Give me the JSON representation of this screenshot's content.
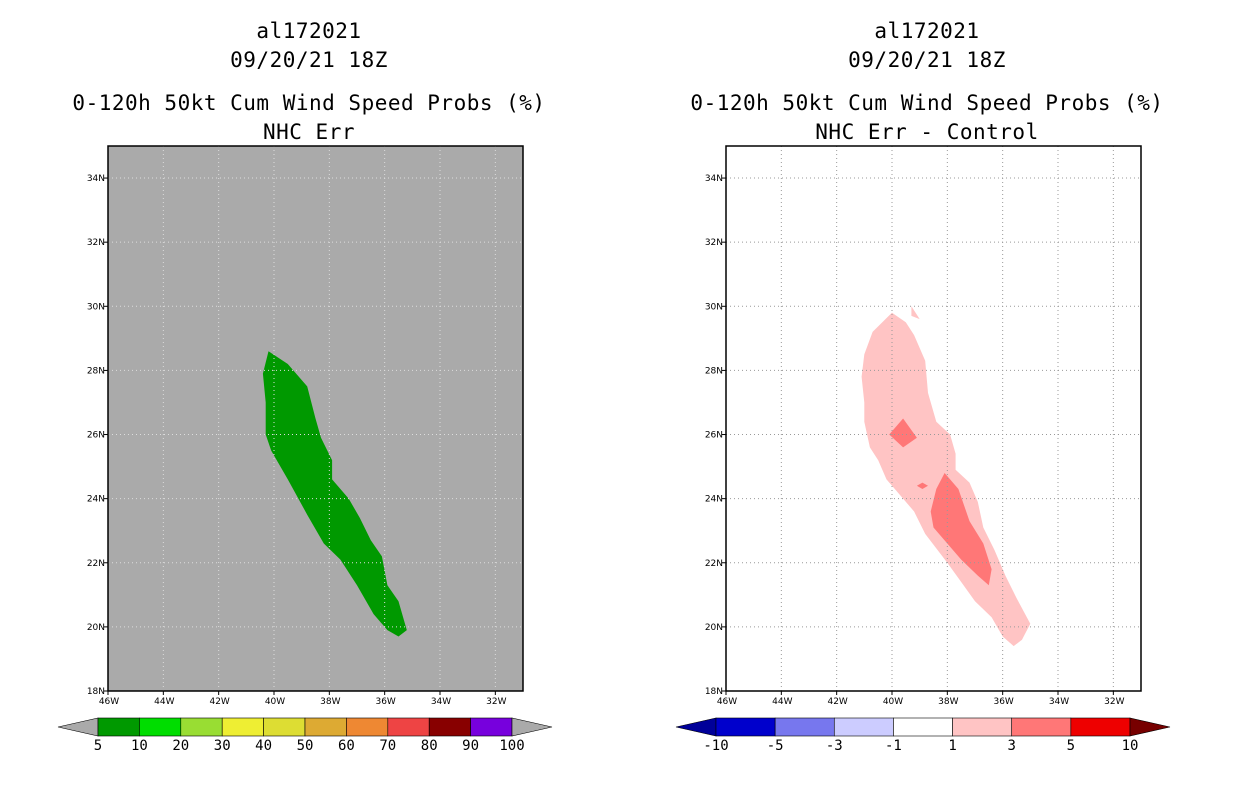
{
  "panels": [
    {
      "storm_id": "al172021",
      "datetime": "09/20/21 18Z",
      "product": "0-120h 50kt Cum Wind Speed Probs (%)",
      "subtitle": "NHC Err"
    },
    {
      "storm_id": "al172021",
      "datetime": "09/20/21 18Z",
      "product": "0-120h 50kt Cum Wind Speed Probs (%)",
      "subtitle": "NHC Err - Control"
    }
  ],
  "chart_data": [
    {
      "type": "heatmap",
      "title": "0-120h 50kt Cum Wind Speed Probs (%)",
      "subtitle": "NHC Err",
      "background_color": "#aaaaaa",
      "xlim": [
        -46,
        -31
      ],
      "ylim": [
        18,
        35
      ],
      "x_ticks": [
        -46,
        -44,
        -42,
        -40,
        -38,
        -36,
        -34,
        -32
      ],
      "x_tick_labels": [
        "46W",
        "44W",
        "42W",
        "40W",
        "38W",
        "36W",
        "34W",
        "32W"
      ],
      "y_ticks": [
        18,
        20,
        22,
        24,
        26,
        28,
        30,
        32,
        34
      ],
      "y_tick_labels": [
        "18N",
        "20N",
        "22N",
        "24N",
        "26N",
        "28N",
        "30N",
        "32N",
        "34N"
      ],
      "colorbar": {
        "labels": [
          "5",
          "10",
          "20",
          "30",
          "40",
          "50",
          "60",
          "70",
          "80",
          "90",
          "100"
        ],
        "colors": [
          "#009900",
          "#00dd00",
          "#99dd33",
          "#eeee33",
          "#dddd33",
          "#ddaa33",
          "#ee8833",
          "#ee4444",
          "#880000",
          "#7700dd"
        ],
        "below_color": "#aaaaaa",
        "above_color": "#aaaaaa"
      },
      "contours": [
        {
          "level": "5-10",
          "color": "#009900",
          "points": [
            [
              -40.2,
              28.6
            ],
            [
              -39.5,
              28.2
            ],
            [
              -38.8,
              27.5
            ],
            [
              -38.5,
              26.5
            ],
            [
              -38.3,
              25.9
            ],
            [
              -37.9,
              25.2
            ],
            [
              -37.9,
              24.6
            ],
            [
              -37.3,
              24.0
            ],
            [
              -36.9,
              23.4
            ],
            [
              -36.5,
              22.7
            ],
            [
              -36.1,
              22.2
            ],
            [
              -35.9,
              21.3
            ],
            [
              -35.5,
              20.8
            ],
            [
              -35.2,
              19.9
            ],
            [
              -35.5,
              19.7
            ],
            [
              -35.9,
              19.9
            ],
            [
              -36.4,
              20.4
            ],
            [
              -37.0,
              21.3
            ],
            [
              -37.6,
              22.1
            ],
            [
              -38.2,
              22.6
            ],
            [
              -38.8,
              23.5
            ],
            [
              -39.5,
              24.6
            ],
            [
              -40.1,
              25.5
            ],
            [
              -40.3,
              26.0
            ],
            [
              -40.3,
              27.0
            ],
            [
              -40.4,
              27.9
            ]
          ]
        }
      ]
    },
    {
      "type": "heatmap",
      "title": "0-120h 50kt Cum Wind Speed Probs (%)",
      "subtitle": "NHC Err - Control",
      "background_color": "#ffffff",
      "xlim": [
        -46,
        -31
      ],
      "ylim": [
        18,
        35
      ],
      "x_ticks": [
        -46,
        -44,
        -42,
        -40,
        -38,
        -36,
        -34,
        -32
      ],
      "x_tick_labels": [
        "46W",
        "44W",
        "42W",
        "40W",
        "38W",
        "36W",
        "34W",
        "32W"
      ],
      "y_ticks": [
        18,
        20,
        22,
        24,
        26,
        28,
        30,
        32,
        34
      ],
      "y_tick_labels": [
        "18N",
        "20N",
        "22N",
        "24N",
        "26N",
        "28N",
        "30N",
        "32N",
        "34N"
      ],
      "colorbar": {
        "labels": [
          "-10",
          "-5",
          "-3",
          "-1",
          "1",
          "3",
          "5",
          "10"
        ],
        "colors": [
          "#0000cc",
          "#7777ee",
          "#ccccff",
          "#ffffff",
          "#ffc4c4",
          "#ff7777",
          "#ee0000"
        ],
        "below_color": "#000099",
        "above_color": "#770000"
      },
      "contours": [
        {
          "level": "1-3",
          "color": "#ffc4c4",
          "points": [
            [
              -40.0,
              29.8
            ],
            [
              -39.5,
              29.5
            ],
            [
              -39.2,
              29.1
            ],
            [
              -38.8,
              28.3
            ],
            [
              -38.7,
              27.3
            ],
            [
              -38.4,
              26.4
            ],
            [
              -37.9,
              26.0
            ],
            [
              -37.7,
              25.4
            ],
            [
              -37.7,
              24.9
            ],
            [
              -37.2,
              24.5
            ],
            [
              -36.9,
              23.9
            ],
            [
              -36.7,
              23.1
            ],
            [
              -36.3,
              22.4
            ],
            [
              -35.9,
              21.6
            ],
            [
              -35.5,
              20.9
            ],
            [
              -35.0,
              20.1
            ],
            [
              -35.3,
              19.6
            ],
            [
              -35.6,
              19.4
            ],
            [
              -36.0,
              19.7
            ],
            [
              -36.4,
              20.3
            ],
            [
              -37.0,
              20.8
            ],
            [
              -37.5,
              21.4
            ],
            [
              -38.0,
              22.0
            ],
            [
              -38.8,
              22.9
            ],
            [
              -39.2,
              23.6
            ],
            [
              -39.7,
              24.1
            ],
            [
              -40.2,
              24.6
            ],
            [
              -40.5,
              25.2
            ],
            [
              -40.8,
              25.6
            ],
            [
              -41.0,
              26.4
            ],
            [
              -41.0,
              27.0
            ],
            [
              -41.1,
              27.8
            ],
            [
              -41.0,
              28.5
            ],
            [
              -40.7,
              29.2
            ]
          ]
        },
        {
          "level": "1-3",
          "color": "#ffc4c4",
          "points": [
            [
              -39.3,
              29.7
            ],
            [
              -39.0,
              29.6
            ],
            [
              -39.3,
              30.0
            ]
          ]
        },
        {
          "level": "3-5",
          "color": "#ff7777",
          "points": [
            [
              -38.1,
              24.8
            ],
            [
              -37.6,
              24.3
            ],
            [
              -37.2,
              23.3
            ],
            [
              -36.7,
              22.6
            ],
            [
              -36.4,
              21.8
            ],
            [
              -36.5,
              21.3
            ],
            [
              -36.9,
              21.6
            ],
            [
              -37.5,
              22.1
            ],
            [
              -38.0,
              22.6
            ],
            [
              -38.5,
              23.1
            ],
            [
              -38.6,
              23.6
            ],
            [
              -38.4,
              24.3
            ]
          ]
        },
        {
          "level": "3-5",
          "color": "#ff7777",
          "points": [
            [
              -39.6,
              26.5
            ],
            [
              -39.1,
              25.9
            ],
            [
              -39.6,
              25.6
            ],
            [
              -40.1,
              26.0
            ]
          ]
        },
        {
          "level": "3-5",
          "color": "#ff7777",
          "points": [
            [
              -38.9,
              24.5
            ],
            [
              -38.7,
              24.4
            ],
            [
              -38.9,
              24.3
            ],
            [
              -39.1,
              24.4
            ]
          ]
        }
      ]
    }
  ]
}
